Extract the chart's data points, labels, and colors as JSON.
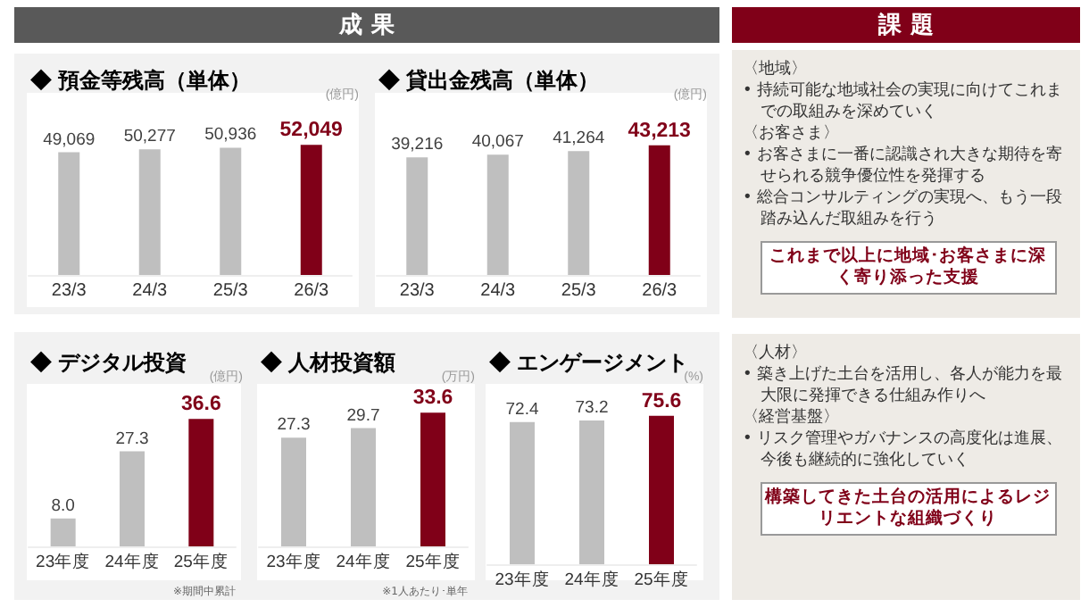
{
  "chart_data": [
    {
      "type": "other",
      "title": "成 果"
    },
    {
      "type": "bar",
      "title": "◆ 預金等残高（単体）",
      "ylabel": "(億円)",
      "categories": [
        "23/3",
        "24/3",
        "25/3",
        "26/3"
      ],
      "values": [
        49069,
        50277,
        50936,
        52049
      ],
      "value_labels": [
        "49,069",
        "50,277",
        "50,936",
        "52,049"
      ],
      "colors": [
        "#bfbfbf",
        "#bfbfbf",
        "#bfbfbf",
        "#800018"
      ]
    },
    {
      "type": "bar",
      "title": "◆ 貸出金残高（単体）",
      "ylabel": "(億円)",
      "categories": [
        "23/3",
        "24/3",
        "25/3",
        "26/3"
      ],
      "values": [
        39216,
        40067,
        41264,
        43213
      ],
      "value_labels": [
        "39,216",
        "40,067",
        "41,264",
        "43,213"
      ],
      "colors": [
        "#bfbfbf",
        "#bfbfbf",
        "#bfbfbf",
        "#800018"
      ]
    },
    {
      "type": "bar",
      "title": "◆ デジタル投資",
      "ylabel": "(億円)",
      "categories": [
        "23年度",
        "24年度",
        "25年度"
      ],
      "values": [
        8.0,
        27.3,
        36.6
      ],
      "value_labels": [
        "8.0",
        "27.3",
        "36.6"
      ],
      "colors": [
        "#bfbfbf",
        "#bfbfbf",
        "#800018"
      ],
      "annotations": [
        "※期間中累計"
      ]
    },
    {
      "type": "bar",
      "title": "◆ 人材投資額",
      "ylabel": "(万円)",
      "categories": [
        "23年度",
        "24年度",
        "25年度"
      ],
      "values": [
        27.3,
        29.7,
        33.6
      ],
      "value_labels": [
        "27.3",
        "29.7",
        "33.6"
      ],
      "colors": [
        "#bfbfbf",
        "#bfbfbf",
        "#800018"
      ],
      "annotations": [
        "※1人あたり･単年"
      ]
    },
    {
      "type": "bar",
      "title": "◆ エンゲージメント",
      "ylabel": "(%)",
      "categories": [
        "23年度",
        "24年度",
        "25年度"
      ],
      "values": [
        72.4,
        73.2,
        75.6
      ],
      "value_labels": [
        "72.4",
        "73.2",
        "75.6"
      ],
      "colors": [
        "#bfbfbf",
        "#bfbfbf",
        "#800018"
      ]
    },
    {
      "type": "other",
      "title": "課 題"
    },
    {
      "type": "other",
      "subtitle": "これまで以上に地域･お客さまに深く寄り添った支援",
      "annotations": [
        "〈地域〉",
        "• 持続可能な地域社会の実現に向けてこれまでの取組みを深めていく",
        "〈お客さま〉",
        "• お客さまに一番に認識され大きな期待を寄せられる競争優位性を発揮する",
        "• 総合コンサルティングの実現へ、もう一段踏み込んだ取組みを行う"
      ]
    },
    {
      "type": "other",
      "subtitle": "構築してきた土台の活用によるレジリエントな組織づくり",
      "annotations": [
        "〈人材〉",
        "• 築き上げた土台を活用し、各人が能力を最大限に発揮できる仕組み作りへ",
        "〈経営基盤〉",
        "• リスク管理やガバナンスの高度化は進展、今後も継続的に強化していく"
      ]
    }
  ]
}
